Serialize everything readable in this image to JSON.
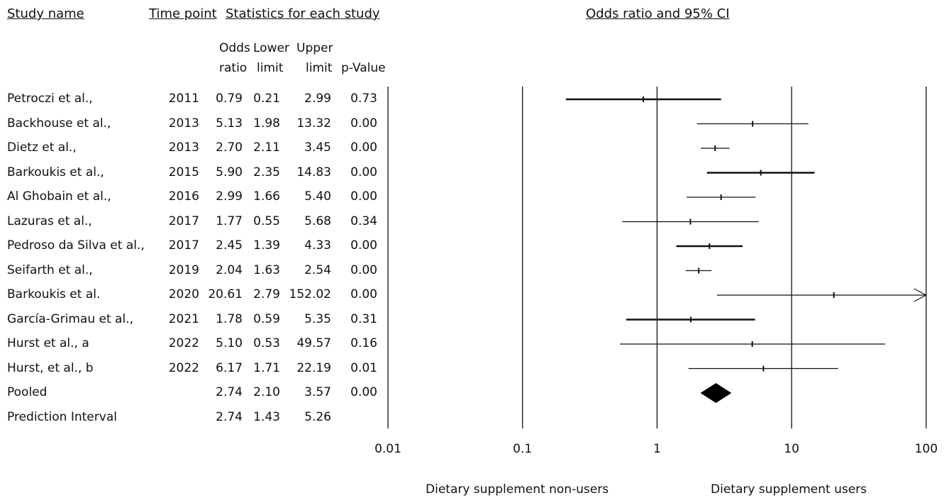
{
  "headers": {
    "study": "Study name",
    "time": "Time point",
    "stats": "Statistics for each study",
    "plot": "Odds ratio and 95% CI"
  },
  "subheaders": {
    "or_line1": "Odds",
    "or_line2": "ratio",
    "lower_line1": "Lower",
    "lower_line2": "limit",
    "upper_line1": "Upper",
    "upper_line2": "limit",
    "p": "p-Value"
  },
  "footer": {
    "left": "Dietary supplement non-users",
    "right": "Dietary supplement users"
  },
  "chart_data": {
    "type": "forest",
    "x_scale": "log",
    "xlim": [
      0.01,
      100
    ],
    "ticks": [
      "0.01",
      "0.1",
      "1",
      "10",
      "100"
    ],
    "tick_values": [
      0.01,
      0.1,
      1,
      10,
      100
    ],
    "studies": [
      {
        "name": "Petroczi et al.,",
        "year": "2011",
        "or": "0.79",
        "lower": "0.21",
        "upper": "2.99",
        "p": "0.73",
        "heavy": true
      },
      {
        "name": "Backhouse et al.,",
        "year": "2013",
        "or": "5.13",
        "lower": "1.98",
        "upper": "13.32",
        "p": "0.00",
        "heavy": false
      },
      {
        "name": "Dietz et al.,",
        "year": "2013",
        "or": "2.70",
        "lower": "2.11",
        "upper": "3.45",
        "p": "0.00",
        "heavy": false
      },
      {
        "name": "Barkoukis et al.,",
        "year": "2015",
        "or": "5.90",
        "lower": "2.35",
        "upper": "14.83",
        "p": "0.00",
        "heavy": true
      },
      {
        "name": "Al Ghobain et al.,",
        "year": "2016",
        "or": "2.99",
        "lower": "1.66",
        "upper": "5.40",
        "p": "0.00",
        "heavy": false
      },
      {
        "name": "Lazuras et al.,",
        "year": "2017",
        "or": "1.77",
        "lower": "0.55",
        "upper": "5.68",
        "p": "0.34",
        "heavy": false
      },
      {
        "name": "Pedroso da Silva et al.,",
        "year": "2017",
        "or": "2.45",
        "lower": "1.39",
        "upper": "4.33",
        "p": "0.00",
        "heavy": true
      },
      {
        "name": "Seifarth et al.,",
        "year": "2019",
        "or": "2.04",
        "lower": "1.63",
        "upper": "2.54",
        "p": "0.00",
        "heavy": false
      },
      {
        "name": "Barkoukis et al.",
        "year": "2020",
        "or": "20.61",
        "lower": "2.79",
        "upper": "152.02",
        "p": "0.00",
        "heavy": false
      },
      {
        "name": "García-Grimau et al.,",
        "year": "2021",
        "or": "1.78",
        "lower": "0.59",
        "upper": "5.35",
        "p": "0.31",
        "heavy": true
      },
      {
        "name": "Hurst et al., a",
        "year": "2022",
        "or": "5.10",
        "lower": "0.53",
        "upper": "49.57",
        "p": "0.16",
        "heavy": false
      },
      {
        "name": "Hurst, et al., b",
        "year": "2022",
        "or": "6.17",
        "lower": "1.71",
        "upper": "22.19",
        "p": "0.01",
        "heavy": false
      }
    ],
    "pooled": {
      "name": "Pooled",
      "or": "2.74",
      "lower": "2.10",
      "upper": "3.57",
      "p": "0.00"
    },
    "prediction": {
      "name": "Prediction Interval",
      "or": "2.74",
      "lower": "1.43",
      "upper": "5.26"
    }
  }
}
